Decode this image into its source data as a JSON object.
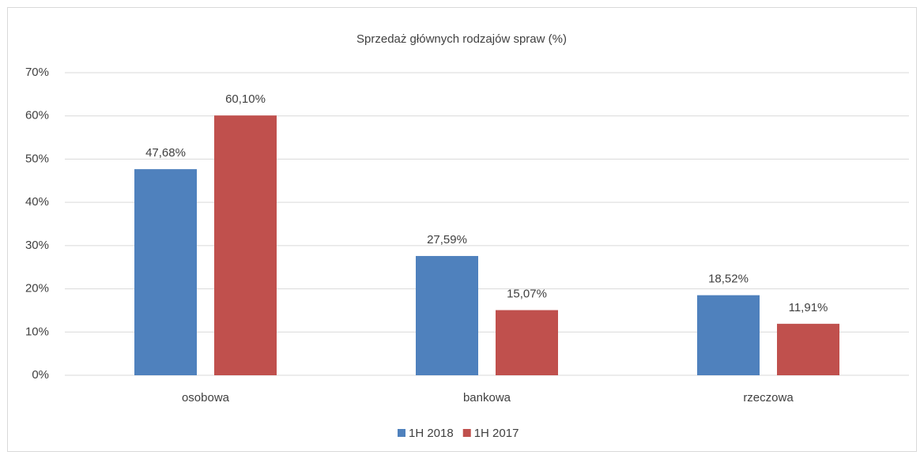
{
  "chart_data": {
    "type": "bar",
    "title": "Sprzedaż głównych rodzajów spraw (%)",
    "categories": [
      "osobowa",
      "bankowa",
      "rzeczowa"
    ],
    "series": [
      {
        "name": "1H 2018",
        "color": "#4f81bd",
        "values": [
          47.68,
          27.59,
          18.52
        ],
        "value_labels": [
          "47,68%",
          "27,59%",
          "18,52%"
        ]
      },
      {
        "name": "1H 2017",
        "color": "#c0504d",
        "values": [
          60.1,
          15.07,
          11.91
        ],
        "value_labels": [
          "60,10%",
          "15,07%",
          "11,91%"
        ]
      }
    ],
    "ylim": [
      0,
      70
    ],
    "yticks": [
      {
        "value": 0,
        "label": "0%"
      },
      {
        "value": 10,
        "label": "10%"
      },
      {
        "value": 20,
        "label": "20%"
      },
      {
        "value": 30,
        "label": "30%"
      },
      {
        "value": 40,
        "label": "40%"
      },
      {
        "value": 50,
        "label": "50%"
      },
      {
        "value": 60,
        "label": "60%"
      },
      {
        "value": 70,
        "label": "70%"
      }
    ],
    "grid": true,
    "legend": "bottom"
  }
}
